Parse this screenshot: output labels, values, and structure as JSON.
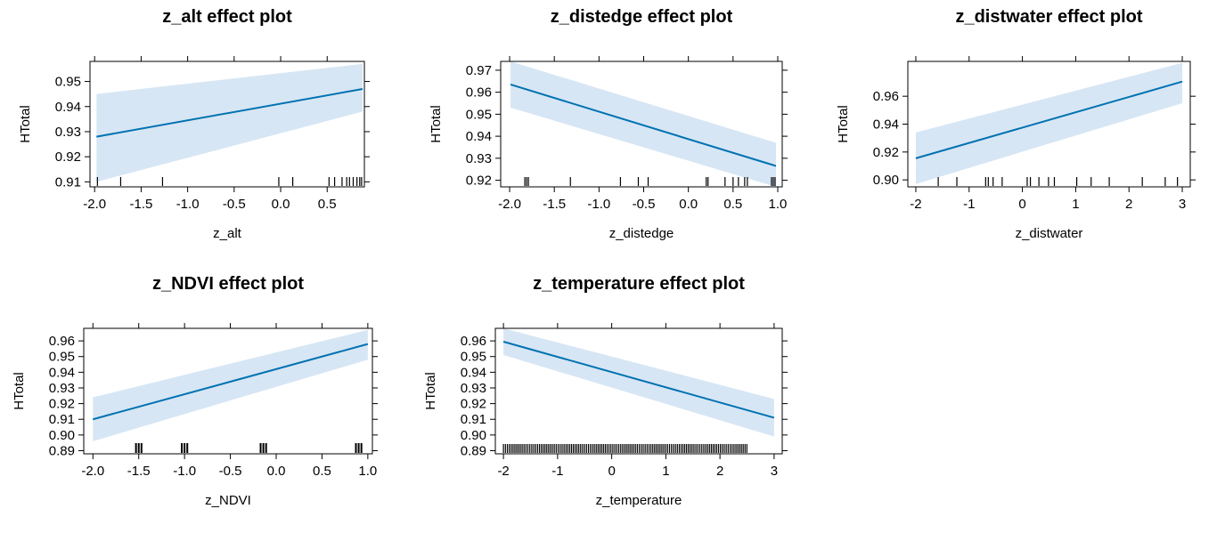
{
  "colors": {
    "line": "#0072B2",
    "band": "#D7E6F4",
    "axis": "#000000",
    "rug": "#000000"
  },
  "chart_data": [
    {
      "type": "line",
      "title": "z_alt effect plot",
      "xlabel": "z_alt",
      "ylabel": "HTotal",
      "xlim": [
        -2.05,
        0.9
      ],
      "ylim": [
        0.908,
        0.958
      ],
      "xticks": [
        -2.0,
        -1.5,
        -1.0,
        -0.5,
        0.0,
        0.5
      ],
      "xtick_labels": [
        "-2.0",
        "-1.5",
        "-1.0",
        "-0.5",
        "0.0",
        "0.5"
      ],
      "yticks": [
        0.91,
        0.92,
        0.93,
        0.94,
        0.95
      ],
      "ytick_labels": [
        "0.91",
        "0.92",
        "0.93",
        "0.94",
        "0.95"
      ],
      "x": [
        -1.98,
        0.88
      ],
      "fit": [
        0.928,
        0.947
      ],
      "lower": [
        0.91,
        0.938
      ],
      "upper": [
        0.945,
        0.957
      ],
      "rug": [
        -1.97,
        -1.72,
        -1.27,
        -0.02,
        0.13,
        0.52,
        0.58,
        0.66,
        0.71,
        0.74,
        0.78,
        0.82,
        0.85,
        0.87
      ],
      "rug_style": "line"
    },
    {
      "type": "line",
      "title": "z_distedge effect plot",
      "xlabel": "z_distedge",
      "ylabel": "HTotal",
      "xlim": [
        -2.1,
        1.05
      ],
      "ylim": [
        0.917,
        0.974
      ],
      "xticks": [
        -2.0,
        -1.5,
        -1.0,
        -0.5,
        0.0,
        0.5,
        1.0
      ],
      "xtick_labels": [
        "-2.0",
        "-1.5",
        "-1.0",
        "-0.5",
        "0.0",
        "0.5",
        "1.0"
      ],
      "yticks": [
        0.92,
        0.93,
        0.94,
        0.95,
        0.96,
        0.97
      ],
      "ytick_labels": [
        "0.92",
        "0.93",
        "0.94",
        "0.95",
        "0.96",
        "0.97"
      ],
      "x": [
        -1.99,
        0.98
      ],
      "fit": [
        0.9635,
        0.9265
      ],
      "lower": [
        0.953,
        0.917
      ],
      "upper": [
        0.974,
        0.937
      ],
      "rug": [
        -1.83,
        -1.81,
        -1.79,
        -1.32,
        -0.76,
        -0.56,
        -0.45,
        0.2,
        0.22,
        0.41,
        0.5,
        0.56,
        0.63,
        0.66,
        0.93,
        0.95,
        0.97
      ],
      "rug_style": "line"
    },
    {
      "type": "line",
      "title": "z_distwater effect plot",
      "xlabel": "z_distwater",
      "ylabel": "HTotal",
      "xlim": [
        -2.15,
        3.15
      ],
      "ylim": [
        0.895,
        0.985
      ],
      "xticks": [
        -2,
        -1,
        0,
        1,
        2,
        3
      ],
      "xtick_labels": [
        "-2",
        "-1",
        "0",
        "1",
        "2",
        "3"
      ],
      "yticks": [
        0.9,
        0.92,
        0.94,
        0.96
      ],
      "ytick_labels": [
        "0.90",
        "0.92",
        "0.94",
        "0.96"
      ],
      "x": [
        -2.0,
        3.0
      ],
      "fit": [
        0.9155,
        0.9705
      ],
      "lower": [
        0.897,
        0.955
      ],
      "upper": [
        0.934,
        0.984
      ],
      "rug": [
        -1.58,
        -1.23,
        -0.69,
        -0.64,
        -0.55,
        -0.38,
        0.09,
        0.15,
        0.31,
        0.49,
        0.6,
        1.02,
        1.29,
        1.63,
        2.25,
        2.68,
        2.91
      ],
      "rug_style": "line"
    },
    {
      "type": "line",
      "title": "z_NDVI effect plot",
      "xlabel": "z_NDVI",
      "ylabel": "HTotal",
      "xlim": [
        -2.1,
        1.05
      ],
      "ylim": [
        0.888,
        0.968
      ],
      "xticks": [
        -2.0,
        -1.5,
        -1.0,
        -0.5,
        0.0,
        0.5,
        1.0
      ],
      "xtick_labels": [
        "-2.0",
        "-1.5",
        "-1.0",
        "-0.5",
        "0.0",
        "0.5",
        "1.0"
      ],
      "yticks": [
        0.89,
        0.9,
        0.91,
        0.92,
        0.93,
        0.94,
        0.95,
        0.96
      ],
      "ytick_labels": [
        "0.89",
        "0.90",
        "0.91",
        "0.92",
        "0.93",
        "0.94",
        "0.95",
        "0.96"
      ],
      "x": [
        -2.0,
        1.0
      ],
      "fit": [
        0.91,
        0.958
      ],
      "lower": [
        0.896,
        0.948
      ],
      "upper": [
        0.924,
        0.967
      ],
      "rug": [
        -1.53,
        -1.5,
        -1.47,
        -1.03,
        -1.0,
        -0.97,
        -0.17,
        -0.14,
        -0.11,
        0.87,
        0.9,
        0.93
      ],
      "rug_style": "block"
    },
    {
      "type": "line",
      "title": "z_temperature effect plot",
      "xlabel": "z_temperature",
      "ylabel": "HTotal",
      "xlim": [
        -2.15,
        3.15
      ],
      "ylim": [
        0.888,
        0.968
      ],
      "xticks": [
        -2,
        -1,
        0,
        1,
        2,
        3
      ],
      "xtick_labels": [
        "-2",
        "-1",
        "0",
        "1",
        "2",
        "3"
      ],
      "yticks": [
        0.89,
        0.9,
        0.91,
        0.92,
        0.93,
        0.94,
        0.95,
        0.96
      ],
      "ytick_labels": [
        "0.89",
        "0.90",
        "0.91",
        "0.92",
        "0.93",
        "0.94",
        "0.95",
        "0.96"
      ],
      "x": [
        -2.0,
        3.0
      ],
      "fit": [
        0.9595,
        0.911
      ],
      "lower": [
        0.951,
        0.899
      ],
      "upper": [
        0.968,
        0.923
      ],
      "rug_range": [
        -2.0,
        2.5
      ],
      "rug_count": 130,
      "rug_style": "line"
    }
  ]
}
